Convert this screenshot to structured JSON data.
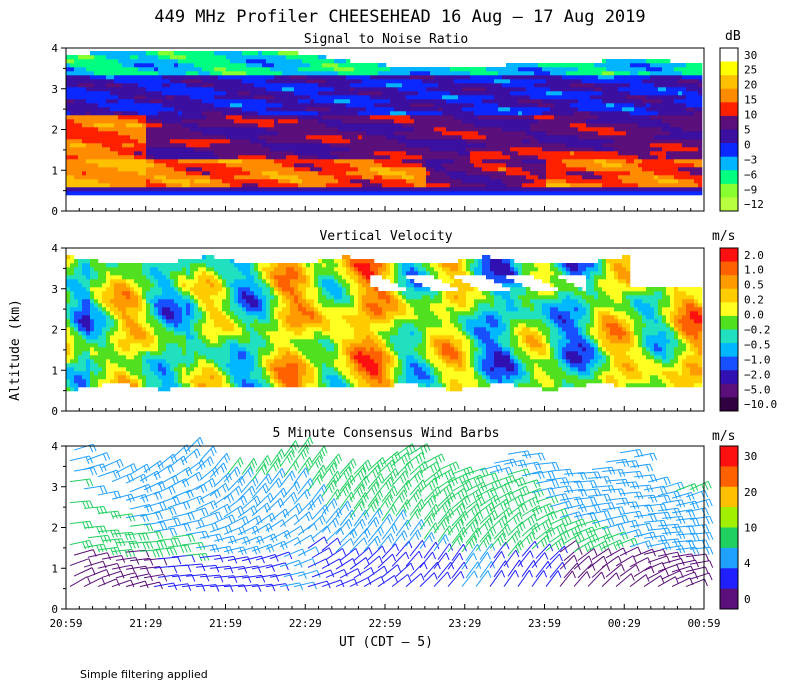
{
  "title": "449 MHz Profiler CHEESEHEAD 16 Aug – 17 Aug 2019",
  "footer": "Simple filtering applied",
  "chart_data": [
    {
      "type": "heatmap",
      "title": "Signal to Noise Ratio",
      "ylabel": "",
      "ylim": [
        0,
        4
      ],
      "yticks": [
        "0",
        "1",
        "2",
        "3",
        "4"
      ],
      "colorbar": {
        "unit": "dB",
        "labels": [
          "30",
          "25",
          "20",
          "15",
          "10",
          "5",
          "0",
          "−3",
          "−6",
          "−9",
          "−12"
        ],
        "colors": [
          "#ffffff",
          "#ffff00",
          "#ffc000",
          "#ff8c00",
          "#ff2000",
          "#5a0f7a",
          "#3b0fa0",
          "#0a28ff",
          "#00b4ff",
          "#00ff80",
          "#88ff30",
          "#b8ff40"
        ]
      },
      "field": {
        "kind": "snr",
        "bands": [
          {
            "from": 0.35,
            "to": 0.5,
            "values": [
              -6
            ]
          },
          {
            "from": 0.5,
            "to": 0.62,
            "values": [
              0
            ]
          },
          {
            "from": 0.62,
            "to": 1.3,
            "values": [
              15,
              10,
              12,
              5
            ]
          },
          {
            "from": 1.3,
            "to": 2.4,
            "values": [
              5,
              10,
              0
            ]
          },
          {
            "from": 2.4,
            "to": 3.6,
            "values": [
              0,
              -3,
              5
            ]
          },
          {
            "from": 3.6,
            "to": 4.0,
            "values": [
              -6,
              -9,
              -3
            ]
          }
        ]
      }
    },
    {
      "type": "heatmap",
      "title": "Vertical Velocity",
      "ylabel": "Altitude (km)",
      "ylim": [
        0,
        4
      ],
      "yticks": [
        "0",
        "1",
        "2",
        "3",
        "4"
      ],
      "colorbar": {
        "unit": "m/s",
        "labels": [
          "2.0",
          "1.0",
          "0.5",
          "0.2",
          "0.0",
          "−0.2",
          "−0.5",
          "−1.0",
          "−2.0",
          "−5.0",
          "−10.0"
        ],
        "colors": [
          "#ff1010",
          "#ff6000",
          "#ff9a00",
          "#ffcc00",
          "#ffff20",
          "#50e020",
          "#20e0c0",
          "#00b8ff",
          "#1850ff",
          "#3010b0",
          "#5a0f7a",
          "#300040"
        ]
      },
      "field": {
        "kind": "vv",
        "range_km": [
          0.5,
          3.8
        ]
      }
    },
    {
      "type": "scatter",
      "title": "5 Minute Consensus Wind Barbs",
      "ylim": [
        0,
        4
      ],
      "yticks": [
        "0",
        "1",
        "2",
        "3",
        "4"
      ],
      "colorbar": {
        "unit": "m/s",
        "labels": [
          "30",
          "20",
          "10",
          "4",
          "0"
        ],
        "colors": [
          "#ff1010",
          "#ff6000",
          "#ffc000",
          "#a0f000",
          "#20d060",
          "#20a0ff",
          "#2020ff",
          "#5a0f7a"
        ]
      },
      "field": {
        "kind": "barbs",
        "speed_min": 0,
        "speed_max": 15
      }
    }
  ],
  "xaxis": {
    "ticks": [
      "20:59",
      "21:29",
      "21:59",
      "22:29",
      "22:59",
      "23:29",
      "23:59",
      "00:29",
      "00:59"
    ],
    "label": "UT  (CDT – 5)"
  }
}
